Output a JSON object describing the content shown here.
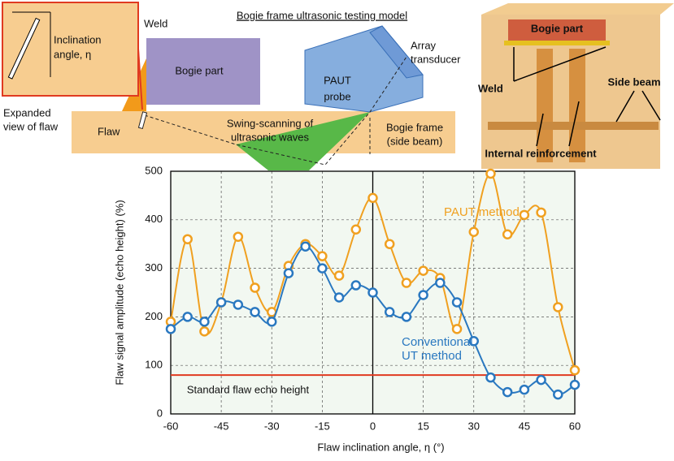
{
  "diagram": {
    "title": "Bogie frame ultrasonic testing model",
    "weld": "Weld",
    "bogie_part": "Bogie part",
    "inset_label": [
      "Inclination",
      "angle, η"
    ],
    "expanded_view": [
      "Expanded",
      "view of flaw"
    ],
    "flaw": "Flaw",
    "probe": [
      "PAUT",
      "probe"
    ],
    "array": [
      "Array",
      "transducer"
    ],
    "swing": [
      "Swing-scanning of",
      "ultrasonic waves"
    ],
    "frame": [
      "Bogie frame",
      "(side beam)"
    ],
    "model_bogie_part": "Bogie part",
    "model_weld": "Weld",
    "model_side_beam": "Side beam",
    "model_internal": "Internal reinforcement"
  },
  "chart_data": {
    "type": "line",
    "xlabel": "Flaw inclination angle, η (°)",
    "ylabel": "Flaw signal amplitude (echo height) (%)",
    "xlim": [
      -60,
      60
    ],
    "xticks": [
      -60,
      -45,
      -30,
      -15,
      0,
      15,
      30,
      45,
      60
    ],
    "ylim": [
      0,
      500
    ],
    "yticks": [
      0,
      100,
      200,
      300,
      400,
      500
    ],
    "grid": true,
    "x": [
      -60,
      -55,
      -50,
      -45,
      -40,
      -35,
      -30,
      -25,
      -20,
      -15,
      -10,
      -5,
      0,
      5,
      10,
      15,
      20,
      25,
      30,
      35,
      40,
      45,
      50,
      55,
      60
    ],
    "series": [
      {
        "name": "PAUT method",
        "color": "#f0a020",
        "values": [
          190,
          360,
          170,
          230,
          365,
          260,
          210,
          305,
          350,
          325,
          285,
          380,
          445,
          350,
          270,
          295,
          280,
          175,
          375,
          495,
          370,
          410,
          415,
          220,
          90
        ]
      },
      {
        "name": "Conventional UT method",
        "color": "#2a78c0",
        "values": [
          175,
          200,
          190,
          230,
          225,
          210,
          190,
          290,
          345,
          300,
          240,
          265,
          250,
          210,
          200,
          245,
          270,
          230,
          150,
          75,
          45,
          50,
          70,
          40,
          60
        ]
      }
    ],
    "reference_line": {
      "value": 80,
      "label": "Standard flaw echo height",
      "color": "#e03a20"
    }
  }
}
